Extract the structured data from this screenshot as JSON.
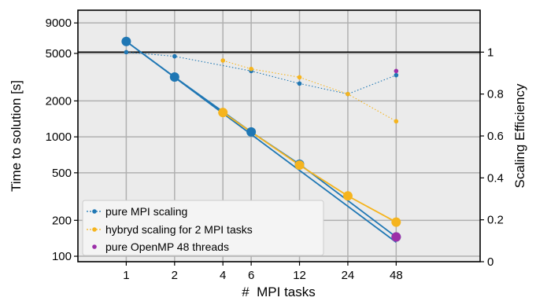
{
  "chart_data": {
    "type": "line",
    "xlabel": "#  MPI tasks",
    "ylabel_left": "Time to solution [s]",
    "ylabel_right": "Scaling Efficiency",
    "x_ticks": [
      1,
      2,
      4,
      6,
      12,
      24,
      48
    ],
    "xlim": [
      0.5,
      160
    ],
    "y_left": {
      "scale": "log",
      "ticks": [
        100,
        200,
        500,
        1000,
        2000,
        5000,
        9000
      ],
      "tick_labels": [
        "100",
        "200",
        "500",
        "1000",
        "2000",
        "5000",
        "9000"
      ],
      "lim": [
        90,
        11500
      ]
    },
    "y_right": {
      "scale": "linear",
      "ticks": [
        0,
        0.2,
        0.4,
        0.6,
        0.8,
        1
      ],
      "tick_labels": [
        "0",
        "0.2",
        "0.4",
        "0.6",
        "0.8",
        "1"
      ],
      "lim": [
        0,
        1.2
      ]
    },
    "reference_line_efficiency": 1,
    "grid": true,
    "legend_position": "lower-left",
    "series": [
      {
        "name": "pure MPI scaling",
        "color": "#1f77b4",
        "time": {
          "x": [
            1,
            2,
            6,
            12,
            48
          ],
          "y": [
            6300,
            3170,
            1100,
            590,
            145
          ]
        },
        "efficiency": {
          "x": [
            1,
            2,
            6,
            12,
            24,
            48
          ],
          "y": [
            1.0,
            0.98,
            0.91,
            0.85,
            0.8,
            0.89
          ]
        }
      },
      {
        "name": "hybryd scaling for 2 MPI tasks",
        "color": "#f5b41e",
        "time": {
          "x": [
            4,
            12,
            24,
            48
          ],
          "y": [
            1600,
            580,
            320,
            193
          ]
        },
        "efficiency": {
          "x": [
            4,
            6,
            12,
            24,
            48
          ],
          "y": [
            0.96,
            0.92,
            0.88,
            0.8,
            0.67
          ]
        }
      },
      {
        "name": "pure OpenMP 48 threads",
        "color": "#9b2fa8",
        "time": {
          "x": [
            48
          ],
          "y": [
            145
          ]
        },
        "efficiency": {
          "x": [
            48
          ],
          "y": [
            0.91
          ]
        }
      }
    ],
    "ideal_scaling": {
      "color": "#1f77b4",
      "x": [
        1,
        48
      ],
      "y": [
        6300,
        131
      ]
    }
  }
}
